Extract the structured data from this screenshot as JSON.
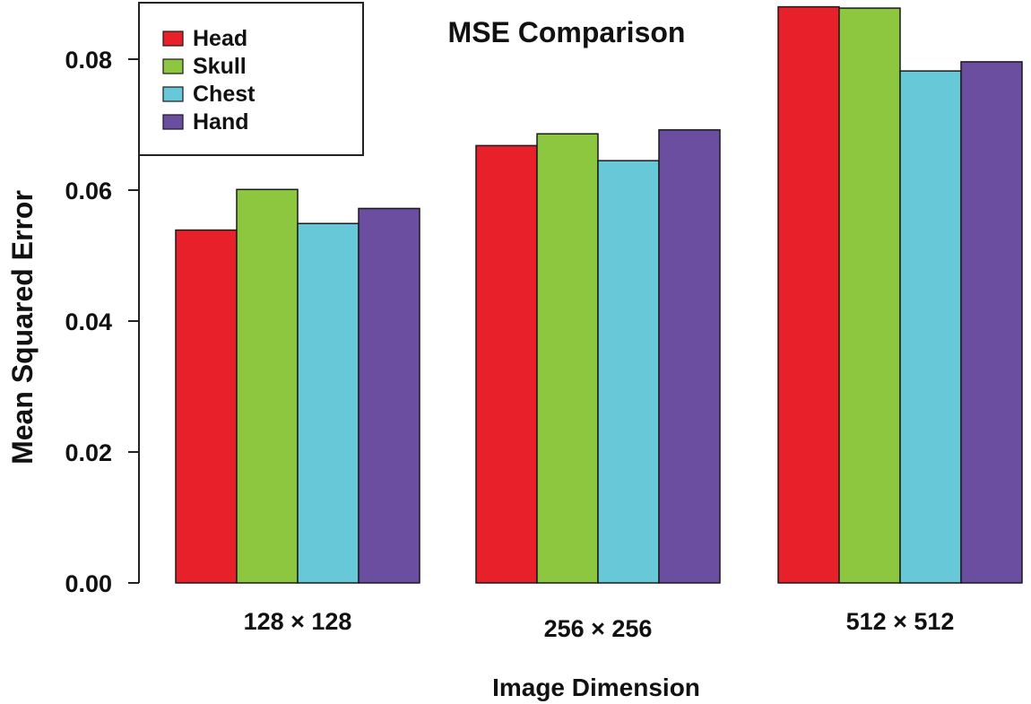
{
  "chart_data": {
    "type": "bar",
    "title": "MSE Comparison",
    "xlabel": "Image Dimension",
    "ylabel": "Mean Squared Error",
    "categories": [
      "128 × 128",
      "256 × 256",
      "512 × 512"
    ],
    "series": [
      {
        "name": "Head",
        "color": "#e8202a",
        "values": [
          0.0539,
          0.0668,
          0.088
        ]
      },
      {
        "name": "Skull",
        "color": "#8dc63f",
        "values": [
          0.0601,
          0.0686,
          0.0878
        ]
      },
      {
        "name": "Chest",
        "color": "#67c8d8",
        "values": [
          0.0549,
          0.0645,
          0.0782
        ]
      },
      {
        "name": "Hand",
        "color": "#6b4ea0",
        "values": [
          0.0572,
          0.0692,
          0.0796
        ]
      }
    ],
    "yticks": [
      "0.00",
      "0.02",
      "0.04",
      "0.06",
      "0.08"
    ],
    "ylim": [
      0,
      0.088
    ],
    "legend_position": "top-left",
    "grid": false
  }
}
